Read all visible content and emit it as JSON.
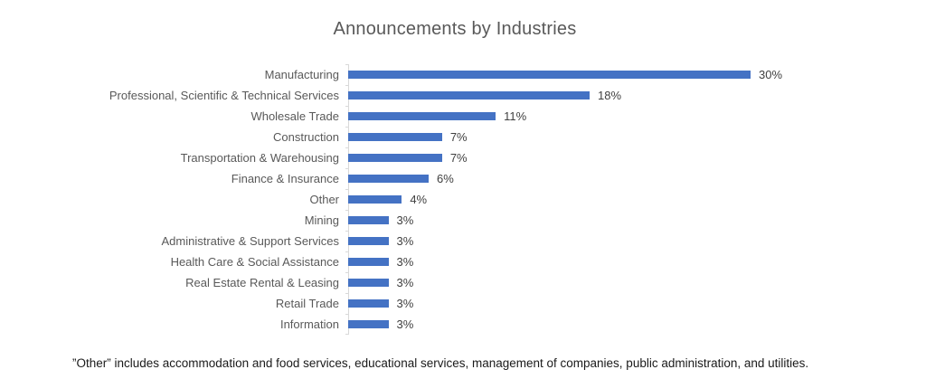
{
  "chart_data": {
    "type": "bar",
    "orientation": "horizontal",
    "title": "Announcements by Industries",
    "categories": [
      "Manufacturing",
      "Professional, Scientific & Technical Services",
      "Wholesale Trade",
      "Construction",
      "Transportation & Warehousing",
      "Finance & Insurance",
      "Other",
      "Mining",
      "Administrative & Support Services",
      "Health Care & Social Assistance",
      "Real Estate Rental & Leasing",
      "Retail Trade",
      "Information"
    ],
    "values": [
      30,
      18,
      11,
      7,
      7,
      6,
      4,
      3,
      3,
      3,
      3,
      3,
      3
    ],
    "value_labels": [
      "30%",
      "18%",
      "11%",
      "7%",
      "7%",
      "6%",
      "4%",
      "3%",
      "3%",
      "3%",
      "3%",
      "3%",
      "3%"
    ],
    "xlabel": "",
    "ylabel": "",
    "xlim": [
      0,
      30
    ],
    "grid": false,
    "legend": "none",
    "bar_color": "#4472C4",
    "axis_color": "#D9D9D9",
    "footnote": "”Other” includes accommodation and food services, educational services, management of companies, public administration, and utilities."
  }
}
